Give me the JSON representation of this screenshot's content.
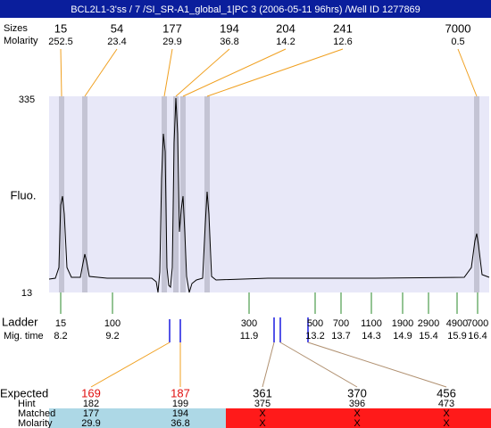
{
  "header": {
    "title": "BCL2L1-3'ss / 7 /SI_SR-A1_global_1|PC 3 (2006-05-11 96hrs) /Well ID 1277869"
  },
  "peaks": {
    "size_label": "Sizes",
    "molarity_label": "Molarity",
    "items": [
      {
        "size": 15,
        "molarity": 252.5
      },
      {
        "size": 54,
        "molarity": 23.4
      },
      {
        "size": 177,
        "molarity": 29.9
      },
      {
        "size": 194,
        "molarity": 36.8
      },
      {
        "size": 204,
        "molarity": 14.2
      },
      {
        "size": 241,
        "molarity": 12.6
      },
      {
        "size": 7000,
        "molarity": 0.5
      }
    ]
  },
  "plot": {
    "y_label": "Fluo.",
    "y_top": 335,
    "y_bottom": 13
  },
  "ladder": {
    "label": "Ladder",
    "time_label": "Mig. time",
    "items": [
      {
        "size": 15,
        "time": 8.2
      },
      {
        "size": 100,
        "time": 9.2
      },
      {
        "size": 300,
        "time": 11.9
      },
      {
        "size": 500,
        "time": 13.2
      },
      {
        "size": 700,
        "time": 13.7
      },
      {
        "size": 1100,
        "time": 14.3
      },
      {
        "size": 1900,
        "time": 14.9
      },
      {
        "size": 2900,
        "time": 15.4
      },
      {
        "size": 4900,
        "time": 15.9
      },
      {
        "size": 7000,
        "time": 16.4
      }
    ]
  },
  "expected": {
    "labels": [
      "Expected",
      "Hint",
      "Matched",
      "Molarity"
    ],
    "columns": [
      {
        "expected": 169,
        "hint": 182,
        "matched": 177,
        "molarity": 29.9
      },
      {
        "expected": 187,
        "hint": 199,
        "matched": 194,
        "molarity": 36.8
      },
      {
        "expected": 361,
        "hint": 375,
        "matched": "X",
        "molarity": "X"
      },
      {
        "expected": 370,
        "hint": 396,
        "matched": "X",
        "molarity": "X"
      },
      {
        "expected": 456,
        "hint": 473,
        "matched": "X",
        "molarity": "X"
      }
    ]
  }
}
